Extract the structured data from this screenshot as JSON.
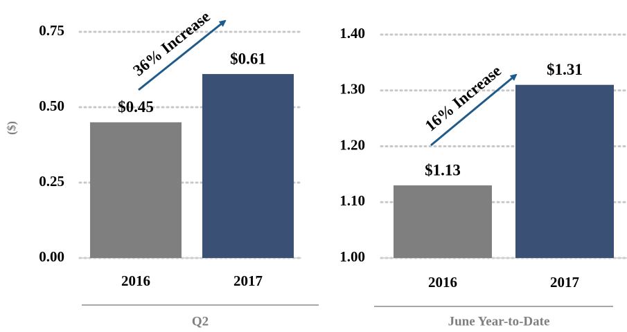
{
  "chart_data": [
    {
      "type": "bar",
      "ylabel": "($)",
      "xlabel": "Q2",
      "annotation": "36% Increase",
      "categories": [
        "2016",
        "2017"
      ],
      "values": [
        0.45,
        0.61
      ],
      "value_labels": [
        "$0.45",
        "$0.61"
      ],
      "colors": [
        "#7f7f7f",
        "#3a5075"
      ],
      "ylim": [
        0,
        0.75
      ],
      "yticks": [
        {
          "value": 0,
          "label": "0.00"
        },
        {
          "value": 0.25,
          "label": "0.25"
        },
        {
          "value": 0.5,
          "label": "0.50"
        },
        {
          "value": 0.75,
          "label": "0.75"
        }
      ],
      "grid": true
    },
    {
      "type": "bar",
      "xlabel": "June Year-to-Date",
      "annotation": "16% Increase",
      "categories": [
        "2016",
        "2017"
      ],
      "values": [
        1.13,
        1.31
      ],
      "value_labels": [
        "$1.13",
        "$1.31"
      ],
      "colors": [
        "#7f7f7f",
        "#3a5075"
      ],
      "ylim": [
        1.0,
        1.4
      ],
      "yticks": [
        {
          "value": 1.0,
          "label": "1.00"
        },
        {
          "value": 1.1,
          "label": "1.10"
        },
        {
          "value": 1.2,
          "label": "1.20"
        },
        {
          "value": 1.3,
          "label": "1.30"
        },
        {
          "value": 1.4,
          "label": "1.40"
        }
      ],
      "grid": true
    }
  ]
}
